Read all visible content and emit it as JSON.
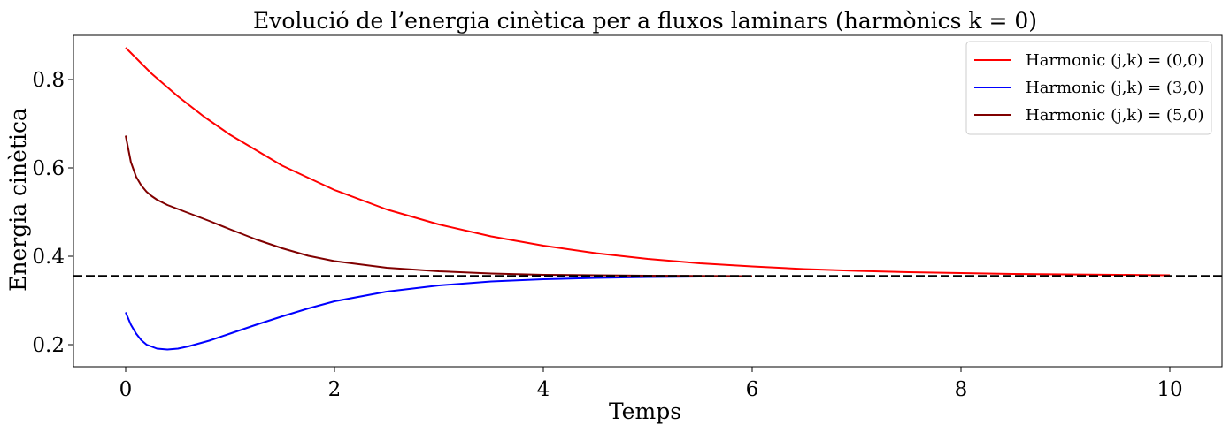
{
  "chart_data": {
    "type": "line",
    "title": "Evolució de l’energia cinètica per a fluxos laminars (harmònics k = 0)",
    "xlabel": "Temps",
    "ylabel": "Energia cinètica",
    "xlim": [
      -0.5,
      10.5
    ],
    "ylim": [
      0.15,
      0.9
    ],
    "xticks": [
      0,
      2,
      4,
      6,
      8,
      10
    ],
    "xtick_labels": [
      "0",
      "2",
      "4",
      "6",
      "8",
      "10"
    ],
    "yticks": [
      0.2,
      0.4,
      0.6,
      0.8
    ],
    "ytick_labels": [
      "0.2",
      "0.4",
      "0.6",
      "0.8"
    ],
    "grid": false,
    "legend_position": "top-right",
    "reference_line": {
      "y": 0.355,
      "style": "dashed",
      "color": "#000000"
    },
    "series": [
      {
        "name": "Harmonic (j,k) = (0,0)",
        "color": "#ff0000",
        "x": [
          0,
          0.25,
          0.5,
          0.75,
          1,
          1.5,
          2,
          2.5,
          3,
          3.5,
          4,
          4.5,
          5,
          5.5,
          6,
          6.5,
          7,
          7.5,
          8,
          8.5,
          9,
          9.5,
          10
        ],
        "y": [
          0.872,
          0.813,
          0.762,
          0.716,
          0.675,
          0.605,
          0.55,
          0.506,
          0.472,
          0.445,
          0.424,
          0.407,
          0.394,
          0.384,
          0.377,
          0.371,
          0.367,
          0.364,
          0.362,
          0.36,
          0.359,
          0.358,
          0.357
        ]
      },
      {
        "name": "Harmonic (j,k) = (3,0)",
        "color": "#0000ff",
        "x": [
          0,
          0.05,
          0.1,
          0.15,
          0.2,
          0.3,
          0.4,
          0.5,
          0.6,
          0.8,
          1,
          1.25,
          1.5,
          1.75,
          2,
          2.5,
          3,
          3.5,
          4,
          4.5,
          5,
          5.5,
          6
        ],
        "y": [
          0.273,
          0.245,
          0.225,
          0.21,
          0.2,
          0.191,
          0.189,
          0.191,
          0.196,
          0.209,
          0.225,
          0.245,
          0.264,
          0.282,
          0.298,
          0.32,
          0.334,
          0.343,
          0.348,
          0.351,
          0.353,
          0.354,
          0.355
        ]
      },
      {
        "name": "Harmonic (j,k) = (5,0)",
        "color": "#800000",
        "x": [
          0,
          0.05,
          0.1,
          0.15,
          0.2,
          0.25,
          0.3,
          0.4,
          0.5,
          0.6,
          0.8,
          1,
          1.25,
          1.5,
          1.75,
          2,
          2.5,
          3,
          3.5,
          4,
          4.5,
          5,
          6
        ],
        "y": [
          0.673,
          0.613,
          0.58,
          0.56,
          0.546,
          0.536,
          0.528,
          0.516,
          0.507,
          0.498,
          0.48,
          0.461,
          0.438,
          0.418,
          0.401,
          0.389,
          0.374,
          0.366,
          0.361,
          0.358,
          0.357,
          0.356,
          0.355
        ]
      }
    ]
  }
}
